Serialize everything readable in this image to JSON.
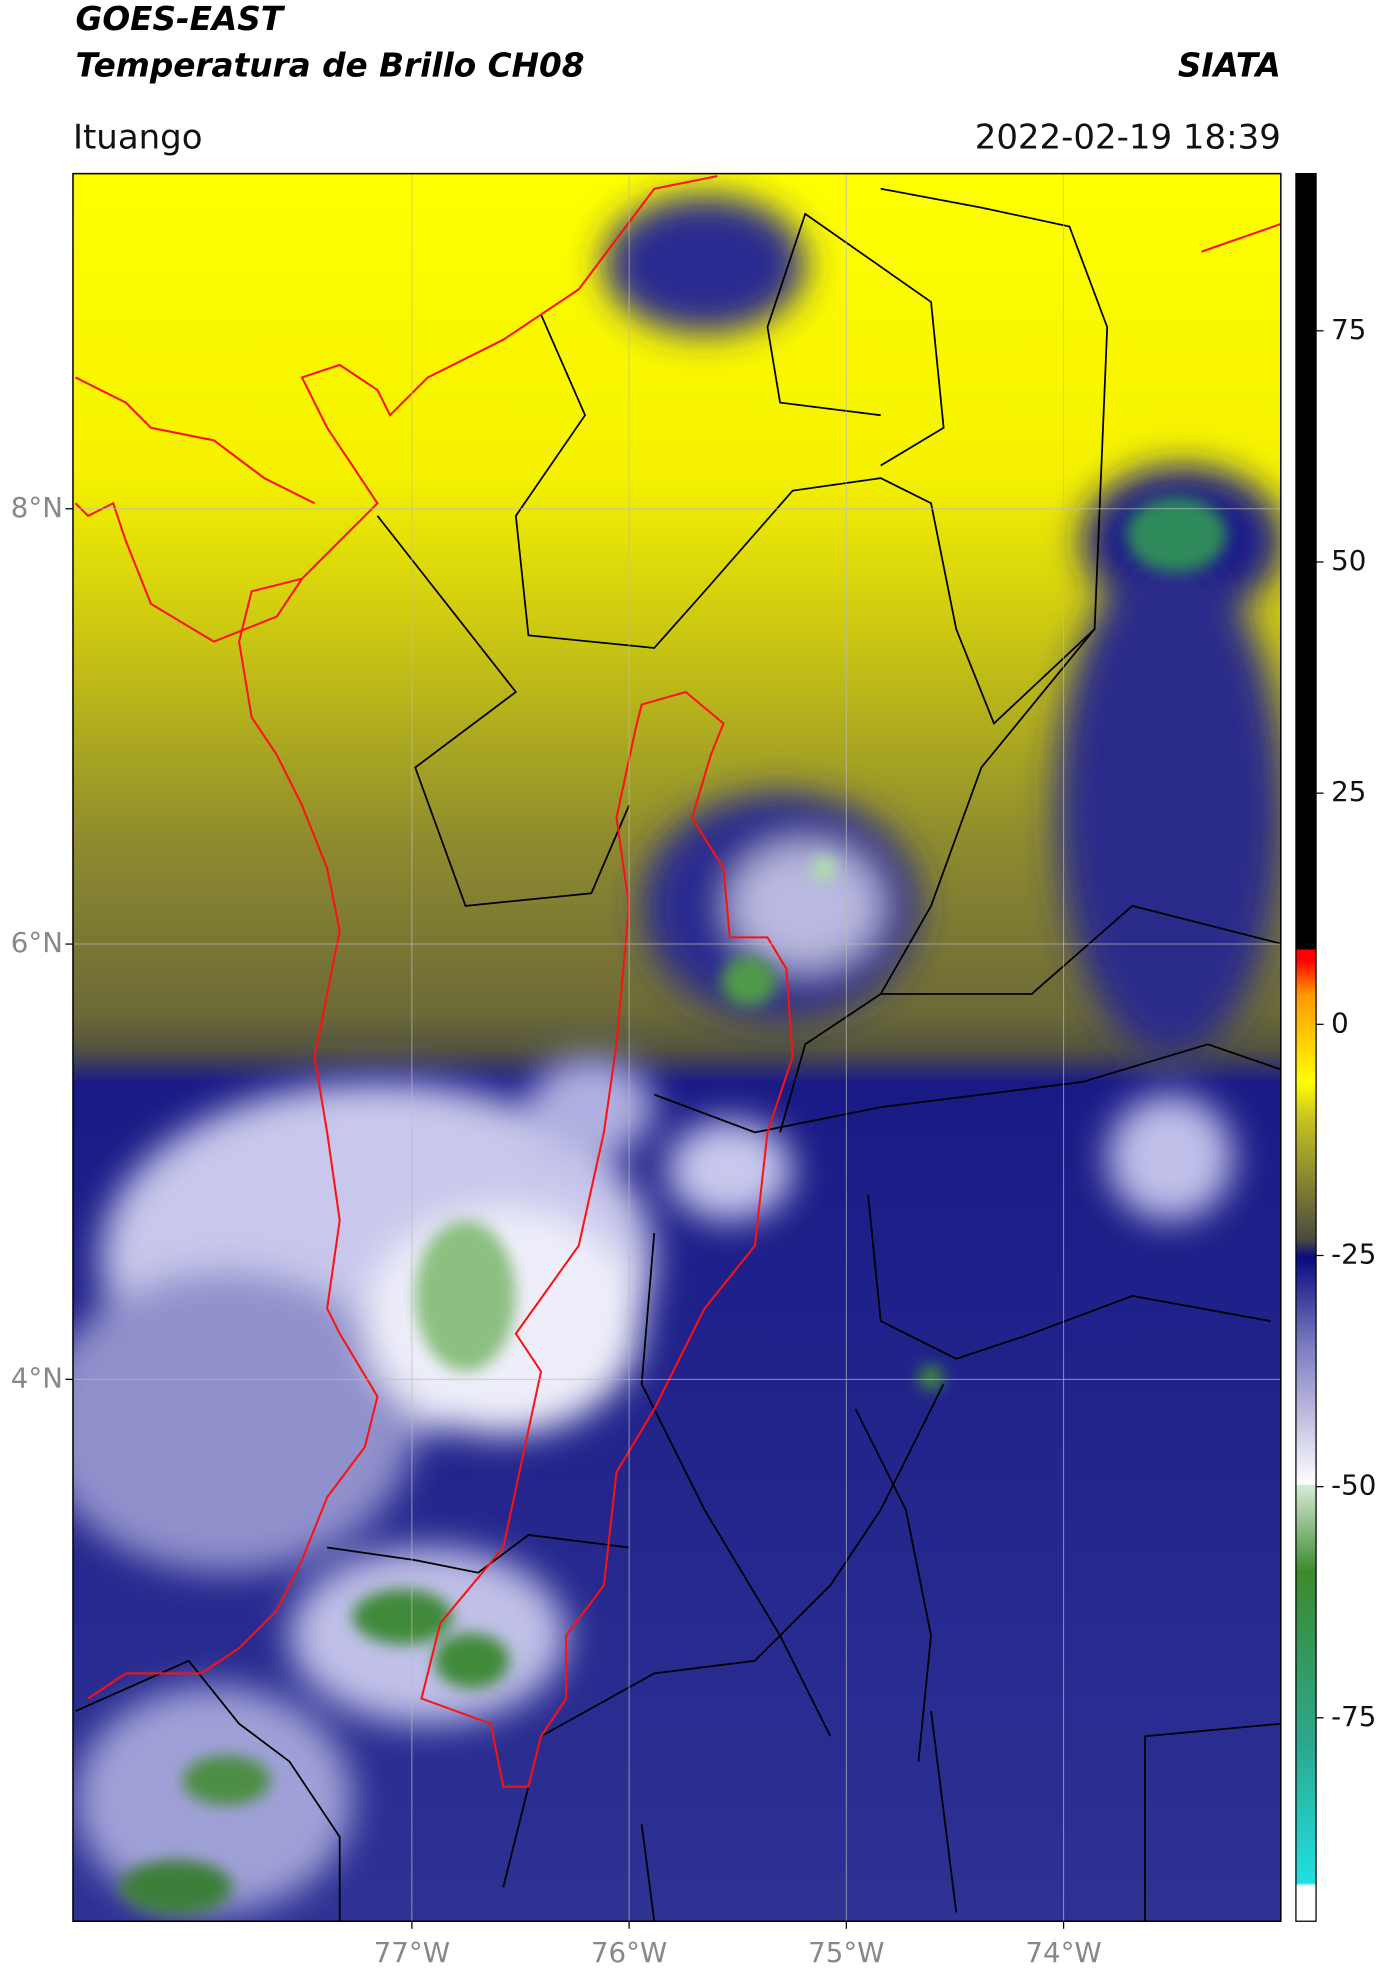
{
  "header": {
    "satellite": "GOES-EAST",
    "product": "Temperatura de Brillo CH08",
    "organization": "SIATA",
    "location": "Ituango",
    "timestamp": "2022-02-19 18:39"
  },
  "map": {
    "xlim": [
      -78.56,
      -73.0
    ],
    "ylim": [
      1.51,
      9.54
    ],
    "xticks": [
      {
        "value": -77,
        "label": "77°W"
      },
      {
        "value": -76,
        "label": "76°W"
      },
      {
        "value": -75,
        "label": "75°W"
      },
      {
        "value": -74,
        "label": "74°W"
      }
    ],
    "yticks": [
      {
        "value": 4,
        "label": "4°N"
      },
      {
        "value": 6,
        "label": "6°N"
      },
      {
        "value": 8,
        "label": "8°N"
      }
    ],
    "grid": true
  },
  "colorbar": {
    "lim": [
      -97,
      92
    ],
    "ticks": [
      -75,
      -50,
      -25,
      0,
      25,
      50,
      75
    ]
  }
}
